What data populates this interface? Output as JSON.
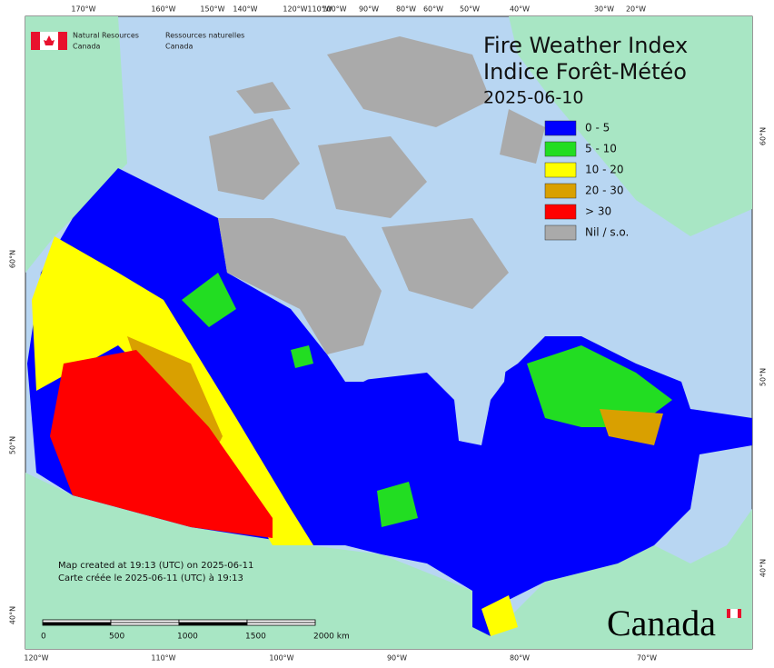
{
  "header": {
    "agency_en": "Natural Resources",
    "agency_en_2": "Canada",
    "agency_fr": "Ressources naturelles",
    "agency_fr_2": "Canada"
  },
  "title": {
    "en": "Fire Weather Index",
    "fr": "Indice Forêt-Météo",
    "date": "2025-06-10"
  },
  "legend": [
    {
      "label": "0 - 5",
      "color": "#0000ff"
    },
    {
      "label": "5 - 10",
      "color": "#22dd22"
    },
    {
      "label": "10 - 20",
      "color": "#ffff00"
    },
    {
      "label": "20 - 30",
      "color": "#d9a000"
    },
    {
      "label": "> 30",
      "color": "#ff0000"
    },
    {
      "label": "Nil / s.o.",
      "color": "#aaaaaa"
    }
  ],
  "credits": [
    "Map created at 19:13 (UTC) on 2025-06-11",
    "Carte créée le 2025-06-11 (UTC) à 19:13"
  ],
  "scale_bar": {
    "labels": [
      "0",
      "500",
      "1000",
      "1500",
      "2000 km"
    ]
  },
  "graticule": {
    "top": [
      "170°W",
      "160°W",
      "150°W",
      "140°W",
      "120°W",
      "110°W",
      "100°W",
      "90°W",
      "80°W",
      "60°W",
      "50°W",
      "40°W",
      "30°W",
      "20°W"
    ],
    "bottom": [
      "120°W",
      "110°W",
      "100°W",
      "90°W",
      "80°W",
      "70°W"
    ],
    "left": [
      "60°N",
      "50°N",
      "40°N"
    ],
    "right": [
      "60°N",
      "50°N",
      "40°N"
    ]
  },
  "wordmark": "Canada"
}
